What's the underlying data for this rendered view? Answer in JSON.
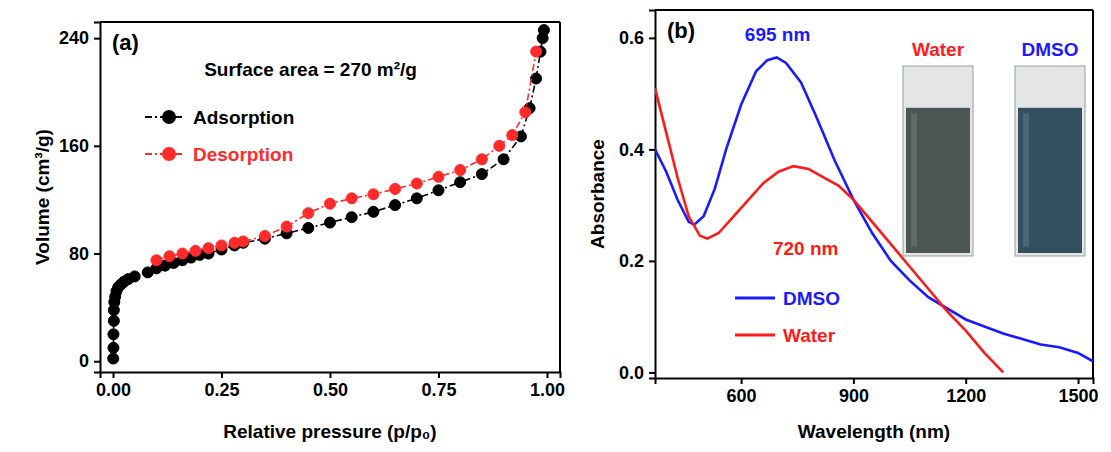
{
  "chart_data": [
    {
      "type": "line",
      "title": "(a)",
      "x_label": "Relative pressure (p/p₀)",
      "y_label": "Volume (cm³/g)",
      "xlim": [
        -0.03,
        1.03
      ],
      "xticks": [
        {
          "value": 0,
          "label": "0.00"
        },
        {
          "value": 0.25,
          "label": "0.25"
        },
        {
          "value": 0.5,
          "label": "0.50"
        },
        {
          "value": 0.75,
          "label": "0.75"
        },
        {
          "value": 1,
          "label": "1.00"
        }
      ],
      "ylim": [
        -8,
        252
      ],
      "yticks": [
        0,
        80,
        160,
        240
      ],
      "grid": false,
      "legend": "upper left",
      "marker": "circle",
      "line_style": "dashdot",
      "annotations": [
        {
          "text": "Surface area = 270 m²/g",
          "x": 0.21,
          "y": 212,
          "color": "#000000"
        }
      ],
      "series": [
        {
          "name": "Adsorption",
          "color": "#000000",
          "x": [
            0.0005,
            0.001,
            0.001,
            0.002,
            0.002,
            0.003,
            0.005,
            0.008,
            0.012,
            0.018,
            0.025,
            0.035,
            0.05,
            0.08,
            0.1,
            0.12,
            0.14,
            0.16,
            0.18,
            0.2,
            0.22,
            0.25,
            0.28,
            0.3,
            0.35,
            0.4,
            0.45,
            0.5,
            0.55,
            0.6,
            0.65,
            0.7,
            0.75,
            0.8,
            0.85,
            0.9,
            0.94,
            0.96,
            0.975,
            0.985,
            0.99,
            0.993
          ],
          "values": [
            2,
            10,
            20,
            30,
            38,
            44,
            48,
            52,
            55,
            57,
            59,
            61,
            63,
            66,
            69,
            71,
            73,
            75,
            77,
            79,
            80,
            83,
            86,
            88,
            91,
            95,
            99,
            103,
            107,
            111,
            116,
            121,
            127,
            133,
            139,
            150,
            167,
            188,
            210,
            230,
            240,
            246
          ]
        },
        {
          "name": "Desorption",
          "color": "#ff2a2a",
          "x": [
            0.1,
            0.13,
            0.16,
            0.19,
            0.22,
            0.25,
            0.28,
            0.3,
            0.35,
            0.4,
            0.45,
            0.5,
            0.55,
            0.6,
            0.65,
            0.7,
            0.75,
            0.8,
            0.85,
            0.89,
            0.92,
            0.95,
            0.975
          ],
          "values": [
            75,
            78,
            80,
            82,
            84,
            86,
            88,
            89,
            93,
            100,
            110,
            117,
            121,
            124,
            128,
            132,
            137,
            142,
            150,
            160,
            168,
            185,
            230
          ]
        }
      ]
    },
    {
      "type": "line",
      "title": "(b)",
      "x_label": "Wavelength (nm)",
      "y_label": "Absorbance",
      "xlim": [
        370,
        1540
      ],
      "xticks": [
        600,
        900,
        1200,
        1500
      ],
      "ylim": [
        -0.01,
        0.65
      ],
      "yticks": [
        {
          "value": 0,
          "label": "0.0"
        },
        {
          "value": 0.2,
          "label": "0.2"
        },
        {
          "value": 0.4,
          "label": "0.4"
        },
        {
          "value": 0.6,
          "label": "0.6"
        }
      ],
      "grid": false,
      "legend": "lower left",
      "marker": "none",
      "line_style": "solid",
      "annotations": [
        {
          "text": "695 nm",
          "x": 610,
          "y": 0.595,
          "color": "#1a1aff"
        },
        {
          "text": "720 nm",
          "x": 685,
          "y": 0.21,
          "color": "#ff1a1a"
        }
      ],
      "inset": {
        "labels": [
          "Water",
          "DMSO"
        ],
        "colors": [
          "#ff1a1a",
          "#1a1aff"
        ]
      },
      "series": [
        {
          "name": "DMSO",
          "color": "#1a1aff",
          "x": [
            370,
            400,
            430,
            460,
            475,
            500,
            530,
            560,
            600,
            640,
            670,
            695,
            720,
            760,
            800,
            850,
            900,
            950,
            1000,
            1050,
            1100,
            1200,
            1300,
            1400,
            1450,
            1500,
            1540
          ],
          "values": [
            0.4,
            0.36,
            0.31,
            0.27,
            0.265,
            0.28,
            0.33,
            0.4,
            0.48,
            0.54,
            0.56,
            0.565,
            0.555,
            0.52,
            0.46,
            0.38,
            0.31,
            0.25,
            0.2,
            0.165,
            0.135,
            0.095,
            0.07,
            0.05,
            0.045,
            0.035,
            0.02
          ]
        },
        {
          "name": "Water",
          "color": "#ff1a1a",
          "x": [
            370,
            400,
            430,
            460,
            490,
            510,
            540,
            580,
            620,
            660,
            700,
            740,
            780,
            820,
            860,
            900,
            950,
            1000,
            1050,
            1100,
            1150,
            1200,
            1250,
            1300
          ],
          "values": [
            0.51,
            0.43,
            0.35,
            0.28,
            0.245,
            0.24,
            0.25,
            0.28,
            0.31,
            0.34,
            0.36,
            0.37,
            0.365,
            0.35,
            0.335,
            0.31,
            0.27,
            0.23,
            0.19,
            0.15,
            0.11,
            0.075,
            0.035,
            0.0
          ]
        }
      ]
    }
  ]
}
